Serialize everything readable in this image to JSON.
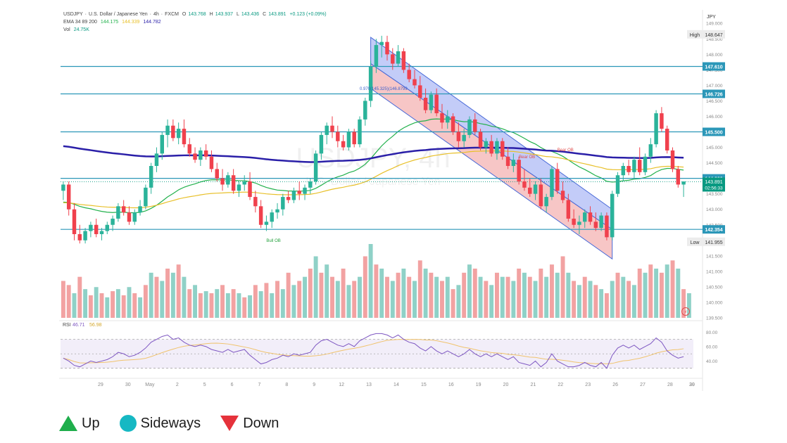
{
  "chart_data": {
    "type": "candlestick",
    "symbol": "USDJPY",
    "header": {
      "line1": [
        "USDJPY",
        "·",
        "U.S. Dollar / Japanese Yen",
        "·",
        "4h",
        "·",
        "FXCM"
      ],
      "ohlc": {
        "O": "143.768",
        "H": "143.937",
        "L": "143.436",
        "C": "143.891",
        "chg": "+0.123 (+0.09%)"
      },
      "ema_label": "EMA 34 89 200",
      "ema_values": [
        "144.175",
        "144.339",
        "144.782"
      ],
      "vol_label": "Vol",
      "vol_value": "24.75K"
    },
    "watermark_symbol": "USDJPY, 4h",
    "watermark_name": "U.S. Dollar / Japanese Yen",
    "currency": "JPY",
    "price_ylim": [
      139.5,
      149.3
    ],
    "price_ticks": [
      "149.000",
      "148.500",
      "148.000",
      "147.500",
      "147.000",
      "146.500",
      "146.000",
      "145.500",
      "145.000",
      "144.500",
      "144.000",
      "143.500",
      "143.000",
      "142.500",
      "142.000",
      "141.500",
      "141.000",
      "140.500",
      "140.000",
      "139.500"
    ],
    "x_ticks": [
      "29",
      "30",
      "May",
      "2",
      "5",
      "6",
      "7",
      "8",
      "9",
      "12",
      "13",
      "14",
      "15",
      "16",
      "19",
      "20",
      "21",
      "22",
      "23",
      "26",
      "27",
      "28",
      "29",
      "30"
    ],
    "levels": [
      {
        "label": "147.610",
        "price": 147.61,
        "color": "#2b97b8"
      },
      {
        "label": "146.726",
        "price": 146.726,
        "color": "#2b97b8"
      },
      {
        "label": "145.500",
        "price": 145.5,
        "color": "#2b97b8"
      },
      {
        "label": "144.000",
        "price": 144.0,
        "color": "#2b97b8"
      },
      {
        "label": "142.354",
        "price": 142.354,
        "color": "#2b97b8"
      }
    ],
    "high": {
      "label": "High",
      "value": "148.647"
    },
    "low": {
      "label": "Low",
      "value": "141.955"
    },
    "last_price": {
      "value": "143.891",
      "countdown": "02:56:33"
    },
    "annotations": {
      "fib": "0.970(145.325)(146.8799",
      "bull_ob": "Bull OB",
      "bear_ob_1": "Bear OB",
      "bear_ob_2": "Bear OB"
    },
    "rsi": {
      "label": "RSI",
      "value": "46.71",
      "ma_value": "56.98",
      "ticks": [
        "80.00",
        "60.00",
        "40.00"
      ]
    },
    "candles": [
      [
        143.6,
        143.9,
        143.3,
        143.8
      ],
      [
        143.8,
        143.9,
        142.8,
        143.0
      ],
      [
        143.0,
        143.2,
        142.0,
        142.2
      ],
      [
        142.2,
        142.5,
        141.9,
        142.0
      ],
      [
        142.0,
        142.4,
        141.9,
        142.3
      ],
      [
        142.3,
        142.6,
        142.1,
        142.5
      ],
      [
        142.5,
        142.7,
        142.1,
        142.2
      ],
      [
        142.2,
        142.4,
        142.0,
        142.3
      ],
      [
        142.3,
        142.6,
        142.2,
        142.5
      ],
      [
        142.5,
        142.8,
        142.3,
        142.7
      ],
      [
        142.7,
        143.2,
        142.6,
        143.1
      ],
      [
        143.1,
        143.3,
        142.8,
        142.9
      ],
      [
        142.9,
        143.1,
        142.5,
        142.6
      ],
      [
        142.6,
        143.0,
        142.5,
        142.9
      ],
      [
        142.9,
        143.3,
        142.8,
        143.1
      ],
      [
        143.1,
        143.8,
        143.0,
        143.7
      ],
      [
        143.7,
        144.5,
        143.5,
        144.4
      ],
      [
        144.4,
        145.0,
        144.2,
        144.8
      ],
      [
        144.8,
        145.5,
        144.6,
        145.4
      ],
      [
        145.4,
        145.9,
        145.0,
        145.7
      ],
      [
        145.7,
        145.9,
        145.2,
        145.3
      ],
      [
        145.3,
        145.8,
        145.1,
        145.6
      ],
      [
        145.6,
        145.9,
        145.0,
        145.1
      ],
      [
        145.1,
        145.3,
        144.7,
        144.8
      ],
      [
        144.8,
        145.0,
        144.5,
        144.6
      ],
      [
        144.6,
        145.0,
        144.4,
        144.9
      ],
      [
        144.9,
        145.1,
        144.6,
        144.7
      ],
      [
        144.7,
        144.9,
        144.2,
        144.3
      ],
      [
        144.3,
        144.5,
        143.9,
        144.0
      ],
      [
        144.0,
        144.3,
        143.6,
        143.8
      ],
      [
        143.8,
        144.2,
        143.7,
        144.1
      ],
      [
        144.1,
        144.3,
        143.5,
        143.6
      ],
      [
        143.6,
        143.9,
        143.4,
        143.8
      ],
      [
        143.8,
        144.1,
        143.6,
        143.9
      ],
      [
        143.9,
        144.2,
        143.3,
        143.4
      ],
      [
        143.4,
        143.6,
        142.9,
        143.1
      ],
      [
        143.1,
        143.3,
        142.4,
        142.5
      ],
      [
        142.5,
        142.8,
        142.3,
        142.6
      ],
      [
        142.6,
        143.0,
        142.4,
        142.9
      ],
      [
        142.9,
        143.2,
        142.7,
        143.0
      ],
      [
        143.0,
        143.5,
        142.8,
        143.4
      ],
      [
        143.4,
        143.6,
        143.2,
        143.3
      ],
      [
        143.3,
        143.7,
        143.2,
        143.6
      ],
      [
        143.6,
        143.9,
        143.3,
        143.5
      ],
      [
        143.5,
        143.8,
        143.3,
        143.7
      ],
      [
        143.7,
        144.0,
        143.5,
        143.9
      ],
      [
        143.9,
        144.9,
        143.8,
        144.8
      ],
      [
        144.8,
        145.5,
        144.6,
        145.4
      ],
      [
        145.4,
        145.8,
        145.1,
        145.7
      ],
      [
        145.7,
        146.0,
        145.3,
        145.5
      ],
      [
        145.5,
        145.7,
        145.0,
        145.2
      ],
      [
        145.2,
        145.4,
        144.9,
        145.0
      ],
      [
        145.0,
        145.6,
        144.9,
        145.5
      ],
      [
        145.5,
        145.6,
        145.0,
        145.1
      ],
      [
        145.1,
        146.0,
        145.0,
        145.9
      ],
      [
        145.9,
        146.6,
        145.7,
        146.5
      ],
      [
        146.5,
        147.8,
        146.3,
        147.6
      ],
      [
        147.6,
        148.5,
        147.4,
        148.3
      ],
      [
        148.3,
        148.6,
        147.9,
        148.4
      ],
      [
        148.4,
        148.6,
        147.8,
        148.0
      ],
      [
        148.0,
        148.2,
        147.5,
        147.7
      ],
      [
        147.7,
        148.3,
        147.6,
        148.1
      ],
      [
        148.1,
        148.2,
        147.4,
        147.5
      ],
      [
        147.5,
        147.7,
        147.1,
        147.2
      ],
      [
        147.2,
        147.5,
        146.9,
        147.0
      ],
      [
        147.0,
        147.3,
        146.5,
        146.6
      ],
      [
        146.6,
        146.9,
        146.1,
        146.2
      ],
      [
        146.2,
        146.8,
        146.1,
        146.7
      ],
      [
        146.7,
        146.9,
        146.0,
        146.1
      ],
      [
        146.1,
        146.4,
        145.6,
        145.8
      ],
      [
        145.8,
        146.2,
        145.6,
        146.0
      ],
      [
        146.0,
        146.1,
        145.4,
        145.5
      ],
      [
        145.5,
        145.8,
        145.0,
        145.2
      ],
      [
        145.2,
        145.6,
        145.0,
        145.4
      ],
      [
        145.4,
        146.0,
        145.3,
        145.9
      ],
      [
        145.9,
        146.1,
        145.4,
        145.5
      ],
      [
        145.5,
        145.6,
        144.9,
        145.0
      ],
      [
        145.0,
        145.3,
        144.8,
        145.2
      ],
      [
        145.2,
        145.4,
        144.7,
        144.8
      ],
      [
        144.8,
        145.3,
        144.6,
        145.2
      ],
      [
        145.2,
        145.3,
        144.6,
        144.7
      ],
      [
        144.7,
        145.0,
        144.3,
        144.4
      ],
      [
        144.4,
        144.8,
        144.2,
        144.6
      ],
      [
        144.6,
        144.7,
        143.8,
        143.9
      ],
      [
        143.9,
        144.3,
        143.6,
        143.7
      ],
      [
        143.7,
        144.0,
        143.4,
        143.5
      ],
      [
        143.5,
        143.9,
        143.3,
        143.8
      ],
      [
        143.8,
        144.0,
        143.0,
        143.1
      ],
      [
        143.1,
        143.5,
        142.9,
        143.4
      ],
      [
        143.4,
        144.4,
        143.3,
        144.3
      ],
      [
        144.3,
        144.5,
        143.5,
        143.6
      ],
      [
        143.6,
        143.9,
        143.2,
        143.3
      ],
      [
        143.3,
        143.5,
        142.6,
        142.7
      ],
      [
        142.7,
        143.0,
        142.4,
        142.5
      ],
      [
        142.5,
        142.8,
        142.2,
        142.6
      ],
      [
        142.6,
        143.0,
        142.4,
        142.9
      ],
      [
        142.9,
        143.1,
        142.5,
        142.6
      ],
      [
        142.6,
        142.9,
        142.3,
        142.4
      ],
      [
        142.4,
        142.9,
        142.3,
        142.8
      ],
      [
        142.8,
        142.9,
        142.0,
        142.1
      ],
      [
        142.1,
        143.6,
        142.0,
        143.5
      ],
      [
        143.5,
        144.2,
        143.4,
        144.1
      ],
      [
        144.1,
        144.5,
        143.9,
        144.4
      ],
      [
        144.4,
        144.6,
        144.1,
        144.2
      ],
      [
        144.2,
        144.7,
        144.0,
        144.6
      ],
      [
        144.6,
        145.0,
        144.1,
        144.2
      ],
      [
        144.2,
        144.8,
        144.1,
        144.7
      ],
      [
        144.7,
        145.3,
        144.5,
        145.1
      ],
      [
        145.1,
        146.2,
        145.0,
        146.1
      ],
      [
        146.1,
        146.3,
        145.5,
        145.6
      ],
      [
        145.6,
        145.7,
        144.8,
        144.9
      ],
      [
        144.9,
        145.0,
        144.2,
        144.3
      ],
      [
        144.3,
        144.4,
        143.7,
        143.8
      ],
      [
        143.8,
        143.9,
        143.4,
        143.9
      ]
    ],
    "rsi_values": [
      44,
      40,
      34,
      32,
      36,
      40,
      38,
      40,
      42,
      46,
      52,
      50,
      46,
      48,
      52,
      58,
      66,
      70,
      74,
      76,
      70,
      72,
      66,
      62,
      60,
      62,
      60,
      56,
      54,
      52,
      56,
      52,
      54,
      56,
      48,
      42,
      36,
      38,
      42,
      44,
      48,
      46,
      50,
      48,
      50,
      52,
      62,
      68,
      70,
      66,
      62,
      60,
      64,
      60,
      68,
      72,
      76,
      78,
      78,
      76,
      72,
      76,
      70,
      66,
      64,
      58,
      54,
      60,
      54,
      50,
      54,
      50,
      46,
      50,
      56,
      50,
      46,
      50,
      46,
      50,
      46,
      42,
      46,
      38,
      36,
      34,
      40,
      32,
      38,
      50,
      40,
      36,
      32,
      32,
      34,
      38,
      34,
      32,
      38,
      30,
      48,
      58,
      62,
      58,
      62,
      56,
      60,
      64,
      72,
      66,
      54,
      48,
      44,
      46
    ],
    "volume": [
      [
        1,
        18
      ],
      [
        1,
        16
      ],
      [
        0,
        12
      ],
      [
        1,
        20
      ],
      [
        0,
        14
      ],
      [
        1,
        11
      ],
      [
        0,
        15
      ],
      [
        1,
        12
      ],
      [
        0,
        10
      ],
      [
        1,
        13
      ],
      [
        0,
        14
      ],
      [
        1,
        11
      ],
      [
        0,
        15
      ],
      [
        1,
        12
      ],
      [
        0,
        10
      ],
      [
        1,
        16
      ],
      [
        0,
        22
      ],
      [
        1,
        20
      ],
      [
        0,
        18
      ],
      [
        1,
        24
      ],
      [
        0,
        22
      ],
      [
        1,
        26
      ],
      [
        0,
        20
      ],
      [
        1,
        14
      ],
      [
        0,
        16
      ],
      [
        1,
        12
      ],
      [
        0,
        13
      ],
      [
        1,
        12
      ],
      [
        0,
        14
      ],
      [
        1,
        16
      ],
      [
        0,
        12
      ],
      [
        1,
        14
      ],
      [
        0,
        12
      ],
      [
        1,
        10
      ],
      [
        0,
        11
      ],
      [
        1,
        16
      ],
      [
        0,
        13
      ],
      [
        1,
        17
      ],
      [
        0,
        12
      ],
      [
        1,
        18
      ],
      [
        0,
        14
      ],
      [
        1,
        22
      ],
      [
        0,
        16
      ],
      [
        1,
        18
      ],
      [
        0,
        20
      ],
      [
        1,
        24
      ],
      [
        0,
        30
      ],
      [
        1,
        22
      ],
      [
        0,
        26
      ],
      [
        1,
        20
      ],
      [
        0,
        18
      ],
      [
        1,
        24
      ],
      [
        0,
        16
      ],
      [
        1,
        18
      ],
      [
        0,
        20
      ],
      [
        1,
        30
      ],
      [
        0,
        36
      ],
      [
        1,
        26
      ],
      [
        0,
        24
      ],
      [
        1,
        20
      ],
      [
        0,
        18
      ],
      [
        1,
        22
      ],
      [
        0,
        24
      ],
      [
        1,
        20
      ],
      [
        0,
        18
      ],
      [
        1,
        28
      ],
      [
        0,
        24
      ],
      [
        1,
        22
      ],
      [
        0,
        20
      ],
      [
        1,
        18
      ],
      [
        0,
        20
      ],
      [
        1,
        14
      ],
      [
        0,
        16
      ],
      [
        1,
        22
      ],
      [
        0,
        26
      ],
      [
        1,
        24
      ],
      [
        0,
        20
      ],
      [
        1,
        18
      ],
      [
        0,
        16
      ],
      [
        1,
        22
      ],
      [
        0,
        20
      ],
      [
        1,
        20
      ],
      [
        0,
        18
      ],
      [
        1,
        24
      ],
      [
        0,
        22
      ],
      [
        1,
        20
      ],
      [
        0,
        18
      ],
      [
        1,
        24
      ],
      [
        0,
        20
      ],
      [
        1,
        26
      ],
      [
        0,
        22
      ],
      [
        1,
        30
      ],
      [
        0,
        22
      ],
      [
        1,
        18
      ],
      [
        0,
        16
      ],
      [
        1,
        20
      ],
      [
        0,
        18
      ],
      [
        1,
        16
      ],
      [
        0,
        14
      ],
      [
        1,
        12
      ],
      [
        0,
        18
      ],
      [
        1,
        22
      ],
      [
        0,
        20
      ],
      [
        1,
        18
      ],
      [
        0,
        16
      ],
      [
        1,
        24
      ],
      [
        0,
        22
      ],
      [
        1,
        26
      ],
      [
        0,
        24
      ],
      [
        1,
        22
      ],
      [
        0,
        26
      ],
      [
        1,
        28
      ],
      [
        0,
        24
      ],
      [
        1,
        14
      ],
      [
        0,
        12
      ]
    ]
  },
  "legend": [
    {
      "label": "Up",
      "color": "#1fae4c"
    },
    {
      "label": "Sideways",
      "color": "#16b8c3"
    },
    {
      "label": "Down",
      "color": "#e5323b"
    }
  ]
}
